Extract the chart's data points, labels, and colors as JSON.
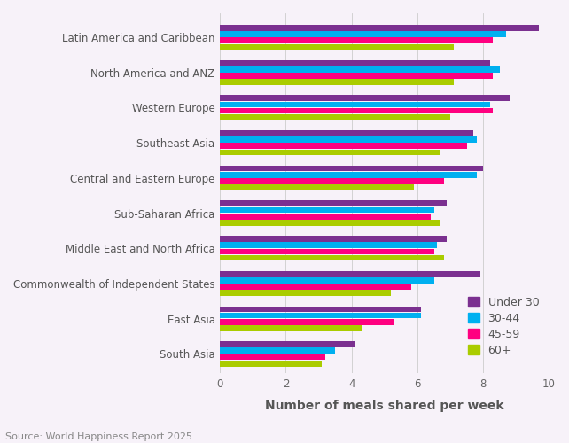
{
  "regions": [
    "Latin America and Caribbean",
    "North America and ANZ",
    "Western Europe",
    "Southeast Asia",
    "Central and Eastern Europe",
    "Sub-Saharan Africa",
    "Middle East and North Africa",
    "Commonwealth of Independent States",
    "East Asia",
    "South Asia"
  ],
  "age_groups": [
    "Under 30",
    "30-44",
    "45-59",
    "60+"
  ],
  "colors": [
    "#7B3090",
    "#00B0F0",
    "#FF0080",
    "#AACC00"
  ],
  "values": {
    "Under 30": [
      9.7,
      8.2,
      8.8,
      7.7,
      8.0,
      6.9,
      6.9,
      7.9,
      6.1,
      4.1
    ],
    "30-44": [
      8.7,
      8.5,
      8.2,
      7.8,
      7.8,
      6.5,
      6.6,
      6.5,
      6.1,
      3.5
    ],
    "45-59": [
      8.3,
      8.3,
      8.3,
      7.5,
      6.8,
      6.4,
      6.5,
      5.8,
      5.3,
      3.2
    ],
    "60+": [
      7.1,
      7.1,
      7.0,
      6.7,
      5.9,
      6.7,
      6.8,
      5.2,
      4.3,
      3.1
    ]
  },
  "xlabel": "Number of meals shared per week",
  "xlim": [
    0,
    10
  ],
  "xticks": [
    0,
    2,
    4,
    6,
    8,
    10
  ],
  "source": "Source: World Happiness Report 2025",
  "background_color": "#F7F2F9",
  "axis_label_fontsize": 10,
  "tick_fontsize": 8.5,
  "legend_fontsize": 9,
  "source_fontsize": 8
}
